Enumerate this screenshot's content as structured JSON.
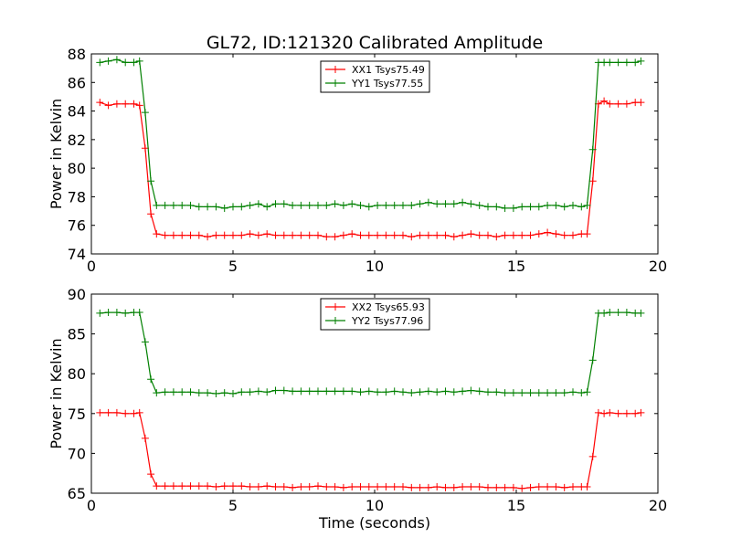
{
  "figure": {
    "title": "GL72, ID:121320 Calibrated Amplitude",
    "xlabel": "Time (seconds)"
  },
  "colors": {
    "xx": "#ff0000",
    "yy": "#008000"
  },
  "chart_data": [
    {
      "type": "line",
      "title": "GL72, ID:121320 Calibrated Amplitude",
      "xlabel": "",
      "ylabel": "Power in Kelvin",
      "xlim": [
        0,
        20
      ],
      "ylim": [
        74,
        88
      ],
      "xticks": [
        0,
        5,
        10,
        15,
        20
      ],
      "yticks": [
        74,
        76,
        78,
        80,
        82,
        84,
        86,
        88
      ],
      "grid": false,
      "legend_position": "top-center",
      "series": [
        {
          "name": "XX1 Tsys75.49",
          "color": "#ff0000",
          "x": [
            0.3,
            0.6,
            0.9,
            1.2,
            1.5,
            1.7,
            1.9,
            2.1,
            2.3,
            2.6,
            2.9,
            3.2,
            3.5,
            3.8,
            4.1,
            4.4,
            4.7,
            5.0,
            5.3,
            5.6,
            5.9,
            6.2,
            6.5,
            6.8,
            7.1,
            7.4,
            7.7,
            8.0,
            8.3,
            8.6,
            8.9,
            9.2,
            9.5,
            9.8,
            10.1,
            10.4,
            10.7,
            11.0,
            11.3,
            11.6,
            11.9,
            12.2,
            12.5,
            12.8,
            13.1,
            13.4,
            13.7,
            14.0,
            14.3,
            14.6,
            14.9,
            15.2,
            15.5,
            15.8,
            16.1,
            16.4,
            16.7,
            17.0,
            17.3,
            17.5,
            17.7,
            17.9,
            18.1,
            18.3,
            18.6,
            18.9,
            19.2,
            19.4
          ],
          "y": [
            84.6,
            84.4,
            84.5,
            84.5,
            84.5,
            84.4,
            81.4,
            76.8,
            75.4,
            75.3,
            75.3,
            75.3,
            75.3,
            75.3,
            75.2,
            75.3,
            75.3,
            75.3,
            75.3,
            75.4,
            75.3,
            75.4,
            75.3,
            75.3,
            75.3,
            75.3,
            75.3,
            75.3,
            75.2,
            75.2,
            75.3,
            75.4,
            75.3,
            75.3,
            75.3,
            75.3,
            75.3,
            75.3,
            75.2,
            75.3,
            75.3,
            75.3,
            75.3,
            75.2,
            75.3,
            75.4,
            75.3,
            75.3,
            75.2,
            75.3,
            75.3,
            75.3,
            75.3,
            75.4,
            75.5,
            75.4,
            75.3,
            75.3,
            75.4,
            75.4,
            79.1,
            84.5,
            84.7,
            84.5,
            84.5,
            84.5,
            84.6,
            84.6
          ]
        },
        {
          "name": "YY1 Tsys77.55",
          "color": "#008000",
          "x": [
            0.3,
            0.6,
            0.9,
            1.2,
            1.5,
            1.7,
            1.9,
            2.1,
            2.3,
            2.6,
            2.9,
            3.2,
            3.5,
            3.8,
            4.1,
            4.4,
            4.7,
            5.0,
            5.3,
            5.6,
            5.9,
            6.2,
            6.5,
            6.8,
            7.1,
            7.4,
            7.7,
            8.0,
            8.3,
            8.6,
            8.9,
            9.2,
            9.5,
            9.8,
            10.1,
            10.4,
            10.7,
            11.0,
            11.3,
            11.6,
            11.9,
            12.2,
            12.5,
            12.8,
            13.1,
            13.4,
            13.7,
            14.0,
            14.3,
            14.6,
            14.9,
            15.2,
            15.5,
            15.8,
            16.1,
            16.4,
            16.7,
            17.0,
            17.3,
            17.5,
            17.7,
            17.9,
            18.1,
            18.3,
            18.6,
            18.9,
            19.2,
            19.4
          ],
          "y": [
            87.4,
            87.5,
            87.6,
            87.4,
            87.4,
            87.5,
            83.9,
            79.1,
            77.4,
            77.4,
            77.4,
            77.4,
            77.4,
            77.3,
            77.3,
            77.3,
            77.2,
            77.3,
            77.3,
            77.4,
            77.5,
            77.3,
            77.5,
            77.5,
            77.4,
            77.4,
            77.4,
            77.4,
            77.4,
            77.5,
            77.4,
            77.5,
            77.4,
            77.3,
            77.4,
            77.4,
            77.4,
            77.4,
            77.4,
            77.5,
            77.6,
            77.5,
            77.5,
            77.5,
            77.6,
            77.5,
            77.4,
            77.3,
            77.3,
            77.2,
            77.2,
            77.3,
            77.3,
            77.3,
            77.4,
            77.4,
            77.3,
            77.4,
            77.3,
            77.4,
            81.3,
            87.4,
            87.4,
            87.4,
            87.4,
            87.4,
            87.4,
            87.5
          ]
        }
      ]
    },
    {
      "type": "line",
      "title": "",
      "xlabel": "Time (seconds)",
      "ylabel": "Power in Kelvin",
      "xlim": [
        0,
        20
      ],
      "ylim": [
        65,
        90
      ],
      "xticks": [
        0,
        5,
        10,
        15,
        20
      ],
      "yticks": [
        65,
        70,
        75,
        80,
        85,
        90
      ],
      "grid": false,
      "legend_position": "top-center",
      "series": [
        {
          "name": "XX2 Tsys65.93",
          "color": "#ff0000",
          "x": [
            0.3,
            0.6,
            0.9,
            1.2,
            1.5,
            1.7,
            1.9,
            2.1,
            2.3,
            2.6,
            2.9,
            3.2,
            3.5,
            3.8,
            4.1,
            4.4,
            4.7,
            5.0,
            5.3,
            5.6,
            5.9,
            6.2,
            6.5,
            6.8,
            7.1,
            7.4,
            7.7,
            8.0,
            8.3,
            8.6,
            8.9,
            9.2,
            9.5,
            9.8,
            10.1,
            10.4,
            10.7,
            11.0,
            11.3,
            11.6,
            11.9,
            12.2,
            12.5,
            12.8,
            13.1,
            13.4,
            13.7,
            14.0,
            14.3,
            14.6,
            14.9,
            15.2,
            15.5,
            15.8,
            16.1,
            16.4,
            16.7,
            17.0,
            17.3,
            17.5,
            17.7,
            17.9,
            18.1,
            18.3,
            18.6,
            18.9,
            19.2,
            19.4
          ],
          "y": [
            75.1,
            75.1,
            75.1,
            75.0,
            75.0,
            75.1,
            71.9,
            67.4,
            65.9,
            65.9,
            65.9,
            65.9,
            65.9,
            65.9,
            65.9,
            65.8,
            65.9,
            65.9,
            65.9,
            65.8,
            65.8,
            65.9,
            65.8,
            65.8,
            65.7,
            65.8,
            65.8,
            65.9,
            65.8,
            65.8,
            65.7,
            65.8,
            65.8,
            65.8,
            65.8,
            65.8,
            65.8,
            65.8,
            65.7,
            65.7,
            65.7,
            65.8,
            65.7,
            65.7,
            65.8,
            65.8,
            65.8,
            65.7,
            65.7,
            65.7,
            65.7,
            65.6,
            65.7,
            65.8,
            65.8,
            65.8,
            65.7,
            65.8,
            65.8,
            65.8,
            69.6,
            75.1,
            75.0,
            75.1,
            75.0,
            75.0,
            75.0,
            75.1
          ]
        },
        {
          "name": "YY2 Tsys77.96",
          "color": "#008000",
          "x": [
            0.3,
            0.6,
            0.9,
            1.2,
            1.5,
            1.7,
            1.9,
            2.1,
            2.3,
            2.6,
            2.9,
            3.2,
            3.5,
            3.8,
            4.1,
            4.4,
            4.7,
            5.0,
            5.3,
            5.6,
            5.9,
            6.2,
            6.5,
            6.8,
            7.1,
            7.4,
            7.7,
            8.0,
            8.3,
            8.6,
            8.9,
            9.2,
            9.5,
            9.8,
            10.1,
            10.4,
            10.7,
            11.0,
            11.3,
            11.6,
            11.9,
            12.2,
            12.5,
            12.8,
            13.1,
            13.4,
            13.7,
            14.0,
            14.3,
            14.6,
            14.9,
            15.2,
            15.5,
            15.8,
            16.1,
            16.4,
            16.7,
            17.0,
            17.3,
            17.5,
            17.7,
            17.9,
            18.1,
            18.3,
            18.6,
            18.9,
            19.2,
            19.4
          ],
          "y": [
            87.6,
            87.7,
            87.7,
            87.6,
            87.7,
            87.7,
            84.0,
            79.3,
            77.6,
            77.7,
            77.7,
            77.7,
            77.7,
            77.6,
            77.6,
            77.5,
            77.6,
            77.5,
            77.7,
            77.7,
            77.8,
            77.7,
            77.9,
            77.9,
            77.8,
            77.8,
            77.8,
            77.8,
            77.8,
            77.8,
            77.8,
            77.8,
            77.7,
            77.8,
            77.7,
            77.7,
            77.8,
            77.7,
            77.6,
            77.7,
            77.8,
            77.7,
            77.8,
            77.7,
            77.8,
            77.9,
            77.8,
            77.7,
            77.7,
            77.6,
            77.6,
            77.6,
            77.6,
            77.6,
            77.6,
            77.6,
            77.6,
            77.7,
            77.6,
            77.7,
            81.7,
            87.6,
            87.6,
            87.7,
            87.7,
            87.7,
            87.6,
            87.6
          ]
        }
      ]
    }
  ]
}
